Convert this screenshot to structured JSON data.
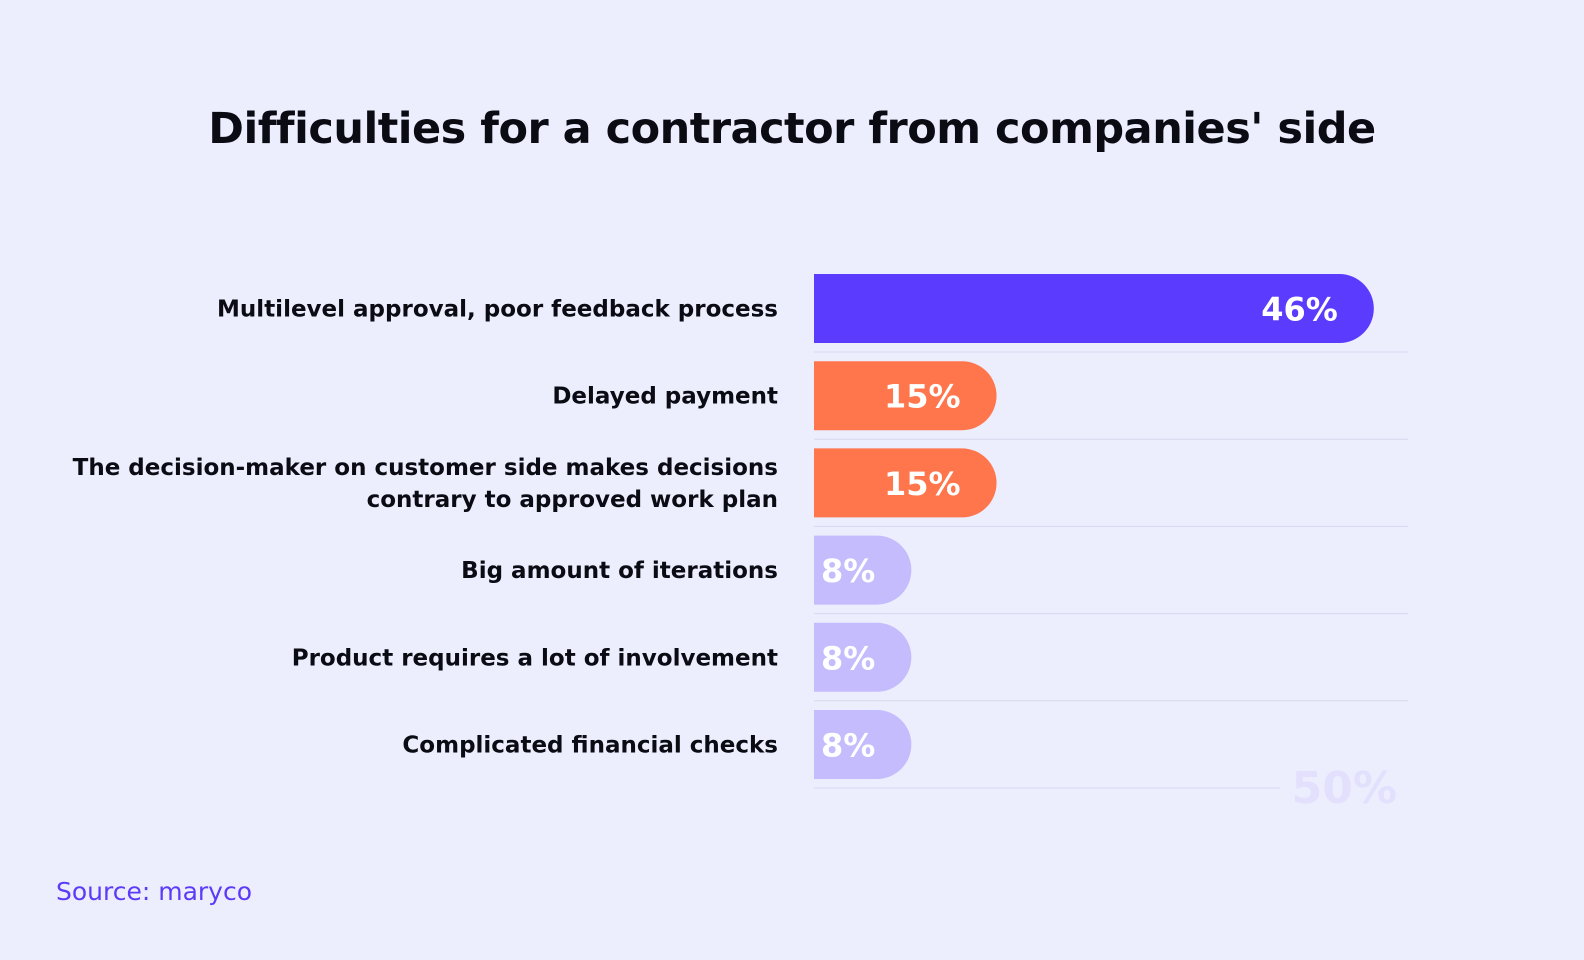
{
  "title": "Difficulties for a contractor from companies' side",
  "source": "Source: maryco",
  "colors": {
    "background": "#eceefe",
    "primary": "#5b3bfe",
    "secondary": "#ff754c",
    "tertiary": "#c4bcfc",
    "separator": "#d6d8ee",
    "axis_label": "#e2e0fc",
    "value_label": "#ffffff",
    "category_label": "#0b0b14"
  },
  "chart_data": {
    "type": "bar",
    "orientation": "horizontal",
    "title": "Difficulties for a contractor from companies' side",
    "categories": [
      [
        "Multilevel approval, poor feedback process"
      ],
      [
        "Delayed payment"
      ],
      [
        "The decision-maker on customer side makes decisions",
        "contrary to approved work plan"
      ],
      [
        "Big amount  of iterations"
      ],
      [
        "Product requires a lot of involvement"
      ],
      [
        "Complicated financial checks"
      ]
    ],
    "values": [
      46,
      15,
      15,
      8,
      8,
      8
    ],
    "value_labels": [
      "46%",
      "15%",
      "15%",
      "8%",
      "8%",
      "8%"
    ],
    "bar_colors": [
      "#5b3bfe",
      "#ff754c",
      "#ff754c",
      "#c4bcfc",
      "#c4bcfc",
      "#c4bcfc"
    ],
    "xlim": [
      0,
      50
    ],
    "axis_tick_label": "50%",
    "grid": false,
    "legend": "none"
  }
}
